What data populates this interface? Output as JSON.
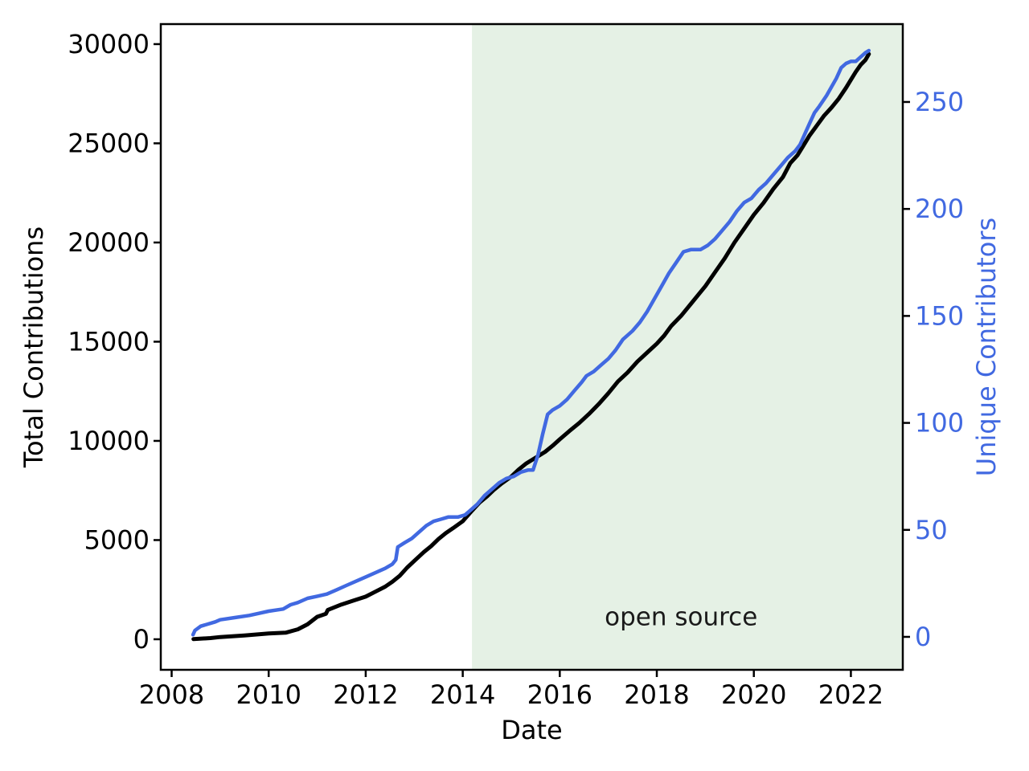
{
  "figure": {
    "background": "#ffffff",
    "region_color": "#e5f1e5",
    "annotation_label": "open source",
    "annotation_color": "#1a1a1a"
  },
  "chart_data": {
    "type": "line",
    "title": "",
    "xlabel": "Date",
    "ylabel_left": "Total Contributions",
    "ylabel_right": "Unique Contributors",
    "legend_position": "none",
    "grid": false,
    "x_ticks": [
      2008,
      2010,
      2012,
      2014,
      2016,
      2018,
      2020,
      2022
    ],
    "y_left_ticks": [
      0,
      5000,
      10000,
      15000,
      20000,
      25000,
      30000
    ],
    "y_right_ticks": [
      0,
      50,
      100,
      150,
      200,
      250
    ],
    "xlim": [
      2007.776,
      2023.07
    ],
    "ylim_left": [
      -1540,
      31010
    ],
    "ylim_right": [
      -15.4,
      286.4
    ],
    "open_source_start": 2014.19,
    "annotation_x": 2018.5,
    "annotation_y_left": 700,
    "axis_color": "#000000",
    "right_tick_label_color": "#4169e1",
    "series": [
      {
        "name": "Total Contributions",
        "axis": "left",
        "color": "#000000",
        "width": 5,
        "points": [
          [
            2008.45,
            10
          ],
          [
            2008.8,
            60
          ],
          [
            2009.0,
            110
          ],
          [
            2009.5,
            190
          ],
          [
            2010.0,
            290
          ],
          [
            2010.35,
            330
          ],
          [
            2010.6,
            500
          ],
          [
            2010.8,
            750
          ],
          [
            2011.0,
            1130
          ],
          [
            2011.18,
            1280
          ],
          [
            2011.22,
            1480
          ],
          [
            2011.5,
            1750
          ],
          [
            2011.75,
            1950
          ],
          [
            2012.0,
            2150
          ],
          [
            2012.2,
            2400
          ],
          [
            2012.4,
            2650
          ],
          [
            2012.55,
            2900
          ],
          [
            2012.7,
            3200
          ],
          [
            2012.85,
            3600
          ],
          [
            2013.0,
            3950
          ],
          [
            2013.2,
            4400
          ],
          [
            2013.35,
            4700
          ],
          [
            2013.5,
            5050
          ],
          [
            2013.65,
            5350
          ],
          [
            2013.8,
            5600
          ],
          [
            2014.0,
            5950
          ],
          [
            2014.19,
            6480
          ],
          [
            2014.35,
            6900
          ],
          [
            2014.5,
            7200
          ],
          [
            2014.65,
            7550
          ],
          [
            2014.8,
            7850
          ],
          [
            2015.0,
            8200
          ],
          [
            2015.15,
            8550
          ],
          [
            2015.3,
            8850
          ],
          [
            2015.5,
            9150
          ],
          [
            2015.7,
            9450
          ],
          [
            2015.85,
            9750
          ],
          [
            2016.0,
            10080
          ],
          [
            2016.2,
            10500
          ],
          [
            2016.4,
            10900
          ],
          [
            2016.6,
            11350
          ],
          [
            2016.8,
            11850
          ],
          [
            2017.0,
            12400
          ],
          [
            2017.2,
            13000
          ],
          [
            2017.4,
            13450
          ],
          [
            2017.6,
            14000
          ],
          [
            2017.8,
            14450
          ],
          [
            2018.0,
            14900
          ],
          [
            2018.15,
            15300
          ],
          [
            2018.3,
            15800
          ],
          [
            2018.5,
            16300
          ],
          [
            2018.7,
            16900
          ],
          [
            2018.85,
            17350
          ],
          [
            2019.0,
            17800
          ],
          [
            2019.2,
            18500
          ],
          [
            2019.4,
            19200
          ],
          [
            2019.6,
            20000
          ],
          [
            2019.8,
            20700
          ],
          [
            2020.0,
            21400
          ],
          [
            2020.2,
            22000
          ],
          [
            2020.4,
            22700
          ],
          [
            2020.6,
            23300
          ],
          [
            2020.75,
            24000
          ],
          [
            2020.9,
            24400
          ],
          [
            2021.0,
            24800
          ],
          [
            2021.15,
            25400
          ],
          [
            2021.3,
            25900
          ],
          [
            2021.45,
            26400
          ],
          [
            2021.6,
            26800
          ],
          [
            2021.75,
            27250
          ],
          [
            2021.9,
            27800
          ],
          [
            2022.0,
            28200
          ],
          [
            2022.1,
            28600
          ],
          [
            2022.2,
            28950
          ],
          [
            2022.3,
            29200
          ],
          [
            2022.37,
            29500
          ]
        ]
      },
      {
        "name": "Unique Contributors",
        "axis": "right",
        "color": "#4169e1",
        "width": 4.5,
        "points": [
          [
            2008.44,
            1
          ],
          [
            2008.48,
            3
          ],
          [
            2008.6,
            5
          ],
          [
            2008.75,
            6
          ],
          [
            2008.9,
            7
          ],
          [
            2009.0,
            8
          ],
          [
            2009.3,
            9
          ],
          [
            2009.6,
            10
          ],
          [
            2009.8,
            11
          ],
          [
            2010.0,
            12
          ],
          [
            2010.3,
            13
          ],
          [
            2010.45,
            15
          ],
          [
            2010.6,
            16
          ],
          [
            2010.8,
            18
          ],
          [
            2011.0,
            19
          ],
          [
            2011.2,
            20
          ],
          [
            2011.4,
            22
          ],
          [
            2011.6,
            24
          ],
          [
            2011.8,
            26
          ],
          [
            2012.0,
            28
          ],
          [
            2012.2,
            30
          ],
          [
            2012.4,
            32
          ],
          [
            2012.55,
            34
          ],
          [
            2012.62,
            36
          ],
          [
            2012.66,
            42
          ],
          [
            2012.8,
            44
          ],
          [
            2012.95,
            46
          ],
          [
            2013.1,
            49
          ],
          [
            2013.25,
            52
          ],
          [
            2013.4,
            54
          ],
          [
            2013.55,
            55
          ],
          [
            2013.7,
            56
          ],
          [
            2013.9,
            56
          ],
          [
            2014.05,
            57
          ],
          [
            2014.15,
            59
          ],
          [
            2014.3,
            62
          ],
          [
            2014.45,
            66
          ],
          [
            2014.6,
            69
          ],
          [
            2014.75,
            72
          ],
          [
            2014.9,
            74
          ],
          [
            2015.05,
            75
          ],
          [
            2015.2,
            77
          ],
          [
            2015.35,
            78
          ],
          [
            2015.45,
            78
          ],
          [
            2015.55,
            85
          ],
          [
            2015.65,
            95
          ],
          [
            2015.75,
            104
          ],
          [
            2015.85,
            106
          ],
          [
            2016.0,
            108
          ],
          [
            2016.15,
            111
          ],
          [
            2016.3,
            115
          ],
          [
            2016.45,
            119
          ],
          [
            2016.55,
            122
          ],
          [
            2016.7,
            124
          ],
          [
            2016.85,
            127
          ],
          [
            2017.0,
            130
          ],
          [
            2017.15,
            134
          ],
          [
            2017.3,
            139
          ],
          [
            2017.5,
            143
          ],
          [
            2017.65,
            147
          ],
          [
            2017.8,
            152
          ],
          [
            2017.95,
            158
          ],
          [
            2018.1,
            164
          ],
          [
            2018.25,
            170
          ],
          [
            2018.4,
            175
          ],
          [
            2018.55,
            180
          ],
          [
            2018.7,
            181
          ],
          [
            2018.9,
            181
          ],
          [
            2019.05,
            183
          ],
          [
            2019.2,
            186
          ],
          [
            2019.35,
            190
          ],
          [
            2019.5,
            194
          ],
          [
            2019.65,
            199
          ],
          [
            2019.8,
            203
          ],
          [
            2019.95,
            205
          ],
          [
            2020.1,
            209
          ],
          [
            2020.25,
            212
          ],
          [
            2020.4,
            216
          ],
          [
            2020.55,
            220
          ],
          [
            2020.7,
            224
          ],
          [
            2020.85,
            227
          ],
          [
            2020.95,
            230
          ],
          [
            2021.05,
            235
          ],
          [
            2021.15,
            240
          ],
          [
            2021.25,
            245
          ],
          [
            2021.35,
            248
          ],
          [
            2021.5,
            253
          ],
          [
            2021.6,
            257
          ],
          [
            2021.7,
            261
          ],
          [
            2021.8,
            266
          ],
          [
            2021.9,
            268
          ],
          [
            2022.0,
            269
          ],
          [
            2022.1,
            269
          ],
          [
            2022.2,
            271
          ],
          [
            2022.3,
            273
          ],
          [
            2022.37,
            274
          ]
        ]
      }
    ]
  }
}
